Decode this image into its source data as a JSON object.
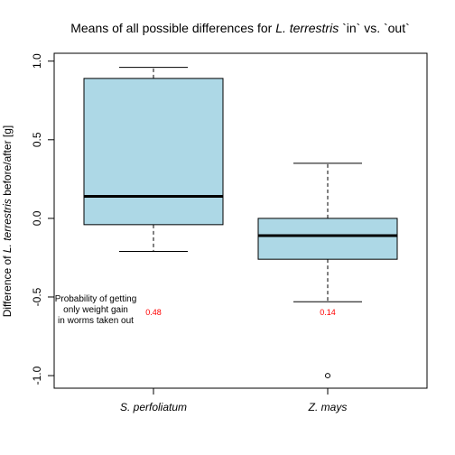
{
  "chart_data": {
    "type": "boxplot",
    "title_parts": [
      {
        "text": "Means of all possible differences for ",
        "italic": false
      },
      {
        "text": "L. terrestris",
        "italic": true
      },
      {
        "text": " `in` vs. `out`",
        "italic": false
      }
    ],
    "ylabel_parts": [
      {
        "text": "Difference of ",
        "italic": false
      },
      {
        "text": "L. terrestris",
        "italic": true
      },
      {
        "text": "  before/after [g]",
        "italic": false
      }
    ],
    "ylim": [
      -1.08,
      1.05
    ],
    "yticks": [
      {
        "value": -1.0,
        "label": "-1.0"
      },
      {
        "value": -0.5,
        "label": "-0.5"
      },
      {
        "value": 0.0,
        "label": "0.0"
      },
      {
        "value": 0.5,
        "label": "0.5"
      },
      {
        "value": 1.0,
        "label": "1.0"
      }
    ],
    "box_color": "#add8e6",
    "outline_color": "#000000",
    "annotation_color": "#ff0000",
    "groups": [
      {
        "label": "S. perfoliatum",
        "whisker_low": -0.21,
        "q1": -0.04,
        "median": 0.14,
        "q3": 0.89,
        "whisker_high": 0.96,
        "outliers": [],
        "annotation": "0.48"
      },
      {
        "label": "Z. mays",
        "whisker_low": -0.53,
        "q1": -0.26,
        "median": -0.11,
        "q3": 0.0,
        "whisker_high": 0.35,
        "outliers": [
          -1.0
        ],
        "annotation": "0.14"
      }
    ],
    "note_lines": [
      "Probability of getting",
      "only weight gain",
      "in worms taken out"
    ]
  }
}
